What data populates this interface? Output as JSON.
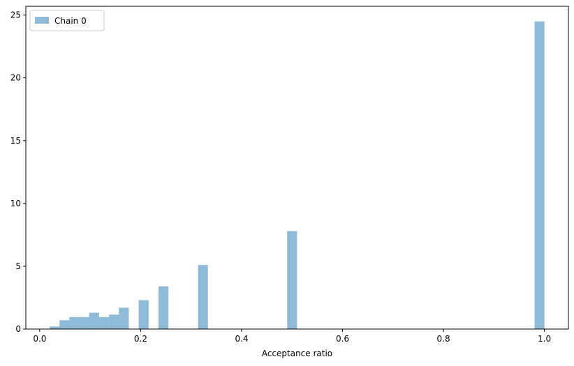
{
  "chart_data": {
    "type": "bar",
    "xlabel": "Acceptance ratio",
    "ylabel": "",
    "xlim": [
      -0.0275,
      1.0475
    ],
    "ylim": [
      0,
      25.7
    ],
    "x_ticks": [
      0.0,
      0.2,
      0.4,
      0.6,
      0.8,
      1.0
    ],
    "x_tick_labels": [
      "0.0",
      "0.2",
      "0.4",
      "0.6",
      "0.8",
      "1.0"
    ],
    "y_ticks": [
      0,
      5,
      10,
      15,
      20,
      25
    ],
    "y_tick_labels": [
      "0",
      "5",
      "10",
      "15",
      "20",
      "25"
    ],
    "grid": false,
    "legend": {
      "position": "top-left",
      "entries": [
        "Chain 0"
      ]
    },
    "bar_color": "#1f77b4",
    "bar_alpha": 0.5,
    "bin_width": 0.0196,
    "series": [
      {
        "name": "Chain 0",
        "bins": [
          {
            "x0": 0.0196,
            "height": 0.2
          },
          {
            "x0": 0.0392,
            "height": 0.7
          },
          {
            "x0": 0.0588,
            "height": 0.95
          },
          {
            "x0": 0.0784,
            "height": 0.95
          },
          {
            "x0": 0.098,
            "height": 1.3
          },
          {
            "x0": 0.1176,
            "height": 0.95
          },
          {
            "x0": 0.1373,
            "height": 1.15
          },
          {
            "x0": 0.1569,
            "height": 1.7
          },
          {
            "x0": 0.1961,
            "height": 2.3
          },
          {
            "x0": 0.2353,
            "height": 3.4
          },
          {
            "x0": 0.3137,
            "height": 5.1
          },
          {
            "x0": 0.4902,
            "height": 7.8
          },
          {
            "x0": 0.9804,
            "height": 24.5
          }
        ]
      }
    ]
  }
}
